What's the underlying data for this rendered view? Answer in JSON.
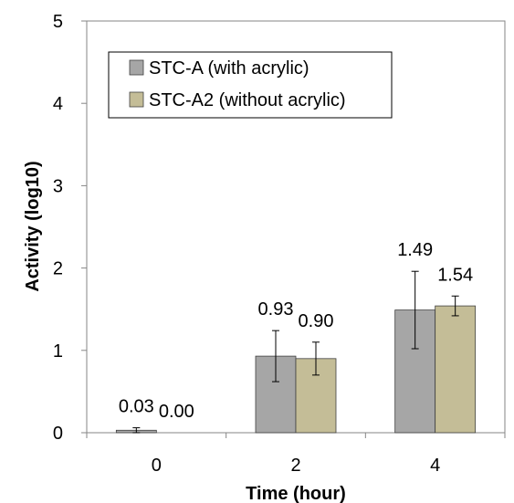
{
  "chart_data": {
    "type": "bar",
    "title": "",
    "xlabel": "Time (hour)",
    "ylabel": "Activity (log10)",
    "categories": [
      "0",
      "2",
      "4"
    ],
    "ylim": [
      0,
      5
    ],
    "yticks": [
      "0",
      "1",
      "2",
      "3",
      "4",
      "5"
    ],
    "legend_position": "top-left",
    "grid": false,
    "series": [
      {
        "name": "STC-A (with acrylic)",
        "color": "#a6a6a6",
        "values": [
          0.03,
          0.93,
          1.49
        ],
        "labels": [
          "0.03",
          "0.93",
          "1.49"
        ],
        "error": [
          0.03,
          0.31,
          0.47
        ]
      },
      {
        "name": "STC-A2 (without acrylic)",
        "color": "#c4bd97",
        "values": [
          0.0,
          0.9,
          1.54
        ],
        "labels": [
          "0.00",
          "0.90",
          "1.54"
        ],
        "error": [
          0.0,
          0.2,
          0.12
        ]
      }
    ]
  }
}
